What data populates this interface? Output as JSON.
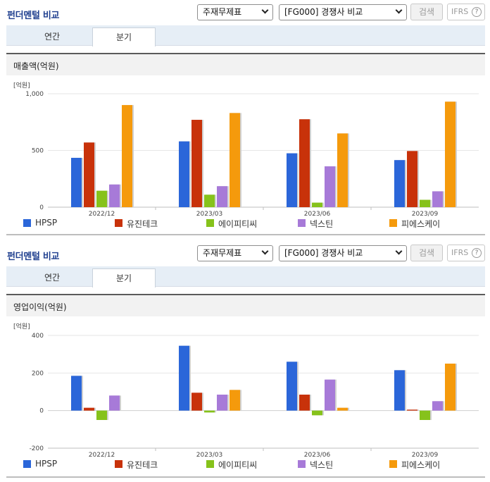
{
  "panels": [
    {
      "header": {
        "title": "펀더멘털 비교",
        "select_statement": "주재무제표",
        "select_peer": "[FG000] 경쟁사 비교",
        "search_label": "검색",
        "ifrs_label": "IFRS",
        "help_label": "?"
      },
      "tabs": [
        {
          "label": "연간"
        },
        {
          "label": "분기"
        }
      ],
      "active_tab": 1,
      "chart_title": "매출액(억원)"
    },
    {
      "header": {
        "title": "펀더멘털 비교",
        "select_statement": "주재무제표",
        "select_peer": "[FG000] 경쟁사 비교",
        "search_label": "검색",
        "ifrs_label": "IFRS",
        "help_label": "?"
      },
      "tabs": [
        {
          "label": "연간"
        },
        {
          "label": "분기"
        }
      ],
      "active_tab": 1,
      "chart_title": "영업이익(억원)"
    }
  ],
  "colors": {
    "HPSP": "#2b66d9",
    "유진테크": "#c8320a",
    "에이피티씨": "#86c21b",
    "넥스틴": "#a77ad8",
    "피에스케이": "#f59a0c"
  },
  "chart_data": [
    {
      "type": "bar",
      "unit": "[억원]",
      "categories": [
        "2022/12",
        "2023/03",
        "2023/06",
        "2023/09"
      ],
      "series": [
        {
          "name": "HPSP",
          "values": [
            435,
            580,
            475,
            415
          ]
        },
        {
          "name": "유진테크",
          "values": [
            570,
            770,
            775,
            495
          ]
        },
        {
          "name": "에이피티씨",
          "values": [
            145,
            110,
            40,
            65
          ]
        },
        {
          "name": "넥스틴",
          "values": [
            200,
            185,
            360,
            140
          ]
        },
        {
          "name": "피에스케이",
          "values": [
            900,
            830,
            650,
            930
          ]
        }
      ],
      "ylim": [
        0,
        1000
      ],
      "yticks": [
        0,
        500,
        1000
      ],
      "ytick_labels": [
        "0",
        "500",
        "1,000"
      ],
      "grid": true,
      "legend": "bottom"
    },
    {
      "type": "bar",
      "unit": "[억원]",
      "categories": [
        "2022/12",
        "2023/03",
        "2023/06",
        "2023/09"
      ],
      "series": [
        {
          "name": "HPSP",
          "values": [
            185,
            345,
            260,
            215
          ]
        },
        {
          "name": "유진테크",
          "values": [
            15,
            95,
            85,
            5
          ]
        },
        {
          "name": "에이피티씨",
          "values": [
            -50,
            -10,
            -25,
            -50
          ]
        },
        {
          "name": "넥스틴",
          "values": [
            80,
            85,
            165,
            50
          ]
        },
        {
          "name": "피에스케이",
          "values": [
            0,
            110,
            15,
            250
          ]
        }
      ],
      "ylim": [
        -200,
        400
      ],
      "yticks": [
        -200,
        0,
        200,
        400
      ],
      "ytick_labels": [
        "-200",
        "0",
        "200",
        "400"
      ],
      "grid": true,
      "legend": "bottom"
    }
  ]
}
